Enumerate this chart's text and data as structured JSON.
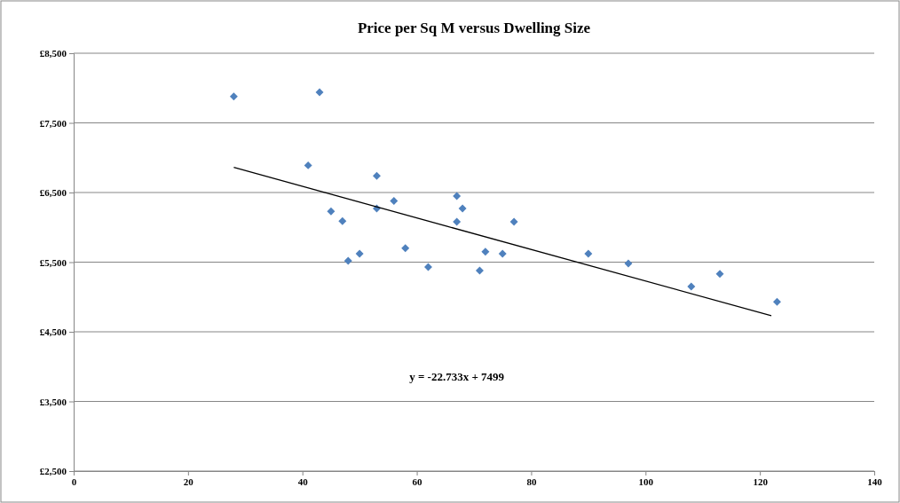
{
  "chart_data": {
    "type": "scatter",
    "title": "Price per Sq M versus Dwelling Size",
    "xlim": [
      0,
      140
    ],
    "xticks": [
      0,
      20,
      40,
      60,
      80,
      100,
      120,
      140
    ],
    "ylim": [
      2500,
      8500
    ],
    "yticks": [
      {
        "value": 2500,
        "label": "£2,500"
      },
      {
        "value": 3500,
        "label": "£3,500"
      },
      {
        "value": 4500,
        "label": "£4,500"
      },
      {
        "value": 5500,
        "label": "£5,500"
      },
      {
        "value": 6500,
        "label": "£6,500"
      },
      {
        "value": 7500,
        "label": "£7,500"
      },
      {
        "value": 8500,
        "label": "£8,500"
      }
    ],
    "grid": "y",
    "marker": "diamond",
    "series": [
      {
        "color": "#4f81bd",
        "x": [
          28,
          43,
          41,
          53,
          45,
          47,
          53,
          56,
          48,
          50,
          58,
          62,
          67,
          67,
          68,
          71,
          72,
          75,
          77,
          90,
          97,
          108,
          113,
          123
        ],
        "values": [
          7880,
          7940,
          6890,
          6740,
          6230,
          6090,
          6270,
          6380,
          5520,
          5620,
          5700,
          5430,
          6450,
          6080,
          6270,
          5380,
          5650,
          5620,
          6080,
          5620,
          5480,
          5150,
          5330,
          4930
        ]
      },
      {
        "type": "line",
        "color": "#000000",
        "marker": "none",
        "x": [
          28,
          122
        ],
        "values": [
          6860,
          4730
        ]
      }
    ],
    "annotations": [
      "y = -22.733x + 7499"
    ]
  }
}
